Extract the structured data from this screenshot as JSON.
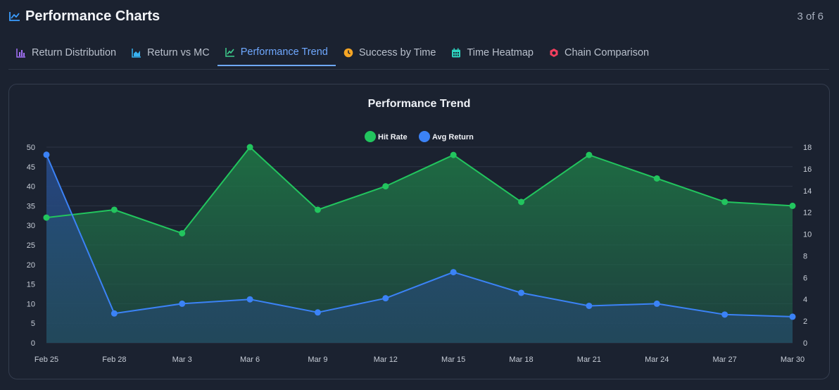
{
  "header": {
    "title": "Performance Charts",
    "counter": "3 of 6",
    "icon": "trending-chart-icon"
  },
  "tabs": [
    {
      "label": "Return Distribution",
      "icon": "bar-chart-icon",
      "color": "#a371f7",
      "active": false
    },
    {
      "label": "Return vs MC",
      "icon": "area-chart-icon",
      "color": "#38b2f0",
      "active": false
    },
    {
      "label": "Performance Trend",
      "icon": "trend-line-icon",
      "color": "#3ecf8e",
      "active": true
    },
    {
      "label": "Success by Time",
      "icon": "clock-icon",
      "color": "#f5a524",
      "active": false
    },
    {
      "label": "Time Heatmap",
      "icon": "calendar-icon",
      "color": "#2dd4bf",
      "active": false
    },
    {
      "label": "Chain Comparison",
      "icon": "chain-hex-icon",
      "color": "#f43f5e",
      "active": false
    }
  ],
  "chart_data": {
    "type": "area",
    "title": "Performance Trend",
    "categories": [
      "Feb 25",
      "Feb 28",
      "Mar 3",
      "Mar 6",
      "Mar 9",
      "Mar 12",
      "Mar 15",
      "Mar 18",
      "Mar 21",
      "Mar 24",
      "Mar 27",
      "Mar 30"
    ],
    "legend_position": "top-center",
    "grid": true,
    "y_left": {
      "min": 0,
      "max": 50,
      "ticks": [
        0,
        5,
        10,
        15,
        20,
        25,
        30,
        35,
        40,
        45,
        50
      ]
    },
    "y_right": {
      "min": 0,
      "max": 18,
      "ticks": [
        0,
        2,
        4,
        6,
        8,
        10,
        12,
        14,
        16,
        18
      ]
    },
    "series": [
      {
        "name": "Hit Rate",
        "axis": "left",
        "color": "#22c55e",
        "values": [
          32,
          34,
          28,
          50,
          34,
          40,
          48,
          36,
          48,
          42,
          36,
          35
        ]
      },
      {
        "name": "Avg Return",
        "axis": "right",
        "color": "#3b82f6",
        "values": [
          17.3,
          2.7,
          3.6,
          4.0,
          2.8,
          4.1,
          6.5,
          4.6,
          3.4,
          3.6,
          2.6,
          2.4
        ]
      }
    ]
  }
}
